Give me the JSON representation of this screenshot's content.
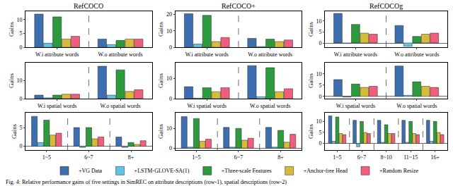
{
  "caption": "Fig. 4: Relative performance gains of five settings in SimREC on attribute descriptions (row-1), spatial descriptions (row-2)",
  "chart_data": [
    {
      "type": "bar",
      "title": "RefCOCO",
      "y_label": "Gains",
      "grid": true,
      "legend": "bottom",
      "categories": [
        "W.i attribute words",
        "W.o attribute words"
      ],
      "ylim": [
        0,
        13
      ],
      "yticks": [
        0,
        5,
        10
      ],
      "series": [
        {
          "name": "+VG Data",
          "color": "#3d6fb0",
          "values": [
            12,
            3
          ]
        },
        {
          "name": "+LSTM-GLOVE-SA(1)",
          "color": "#62c3e6",
          "values": [
            1.5,
            1
          ]
        },
        {
          "name": "+Three-scale Features",
          "color": "#2e9a3e",
          "values": [
            11,
            2.5
          ]
        },
        {
          "name": "+Anchor-free Head",
          "color": "#d6bc3a",
          "values": [
            3,
            3
          ]
        },
        {
          "name": "+Random Resize",
          "color": "#ef5f7c",
          "values": [
            4,
            3
          ]
        }
      ]
    },
    {
      "type": "bar",
      "title": "RefCOCO+",
      "y_label": "Gains",
      "grid": true,
      "categories": [
        "W.i attribute words",
        "W.o attribute words"
      ],
      "ylim": [
        0,
        22
      ],
      "yticks": [
        0,
        10,
        20
      ],
      "series": [
        {
          "name": "+VG Data",
          "color": "#3d6fb0",
          "values": [
            20.5,
            5.5
          ]
        },
        {
          "name": "+LSTM-GLOVE-SA(1)",
          "color": "#62c3e6",
          "values": [
            2,
            0.5
          ]
        },
        {
          "name": "+Three-scale Features",
          "color": "#2e9a3e",
          "values": [
            19.5,
            5
          ]
        },
        {
          "name": "+Anchor-free Head",
          "color": "#d6bc3a",
          "values": [
            3.5,
            3.5
          ]
        },
        {
          "name": "+Random Resize",
          "color": "#ef5f7c",
          "values": [
            6,
            4.5
          ]
        }
      ]
    },
    {
      "type": "bar",
      "title": "RefCOCOg",
      "y_label": "Gains",
      "grid": true,
      "categories": [
        "W.i attribute words",
        "W.o attribute words"
      ],
      "ylim": [
        -2,
        14.5
      ],
      "yticks": [
        0,
        5,
        10
      ],
      "series": [
        {
          "name": "+VG Data",
          "color": "#3d6fb0",
          "values": [
            13.5,
            8
          ]
        },
        {
          "name": "+LSTM-GLOVE-SA(1)",
          "color": "#62c3e6",
          "values": [
            -0.2,
            -1.5
          ]
        },
        {
          "name": "+Three-scale Features",
          "color": "#2e9a3e",
          "values": [
            8.5,
            3
          ]
        },
        {
          "name": "+Anchor-free Head",
          "color": "#d6bc3a",
          "values": [
            4.5,
            4
          ]
        },
        {
          "name": "+Random Resize",
          "color": "#ef5f7c",
          "values": [
            4,
            4.5
          ]
        }
      ]
    },
    {
      "type": "bar",
      "y_label": "Gains",
      "grid": true,
      "categories": [
        "W.i spatial words",
        "W.o spatial words"
      ],
      "ylim": [
        0,
        20
      ],
      "yticks": [
        0,
        10
      ],
      "series": [
        {
          "name": "+VG Data",
          "color": "#3d6fb0",
          "values": [
            2,
            18
          ]
        },
        {
          "name": "+LSTM-GLOVE-SA(1)",
          "color": "#62c3e6",
          "values": [
            0.5,
            2
          ]
        },
        {
          "name": "+Three-scale Features",
          "color": "#2e9a3e",
          "values": [
            2,
            16
          ]
        },
        {
          "name": "+Anchor-free Head",
          "color": "#d6bc3a",
          "values": [
            2.5,
            4
          ]
        },
        {
          "name": "+Random Resize",
          "color": "#ef5f7c",
          "values": [
            2.5,
            5
          ]
        }
      ]
    },
    {
      "type": "bar",
      "y_label": "Gains",
      "grid": true,
      "categories": [
        "W.i spatial words",
        "W.o spatial words"
      ],
      "ylim": [
        0,
        18
      ],
      "yticks": [
        0,
        10
      ],
      "series": [
        {
          "name": "+VG Data",
          "color": "#3d6fb0",
          "values": [
            6,
            16.5
          ]
        },
        {
          "name": "+LSTM-GLOVE-SA(1)",
          "color": "#62c3e6",
          "values": [
            0.3,
            1
          ]
        },
        {
          "name": "+Three-scale Features",
          "color": "#2e9a3e",
          "values": [
            5.5,
            15.5
          ]
        },
        {
          "name": "+Anchor-free Head",
          "color": "#d6bc3a",
          "values": [
            3.5,
            3.5
          ]
        },
        {
          "name": "+Random Resize",
          "color": "#ef5f7c",
          "values": [
            5.5,
            5
          ]
        }
      ]
    },
    {
      "type": "bar",
      "y_label": "Gains",
      "grid": true,
      "categories": [
        "W.i spatial words",
        "W.o spatial words"
      ],
      "ylim": [
        -1,
        15
      ],
      "yticks": [
        0,
        5,
        10
      ],
      "series": [
        {
          "name": "+VG Data",
          "color": "#3d6fb0",
          "values": [
            7.5,
            13.5
          ]
        },
        {
          "name": "+LSTM-GLOVE-SA(1)",
          "color": "#62c3e6",
          "values": [
            -0.3,
            0.5
          ]
        },
        {
          "name": "+Three-scale Features",
          "color": "#2e9a3e",
          "values": [
            5.5,
            6.5
          ]
        },
        {
          "name": "+Anchor-free Head",
          "color": "#d6bc3a",
          "values": [
            4,
            4.5
          ]
        },
        {
          "name": "+Random Resize",
          "color": "#ef5f7c",
          "values": [
            4.5,
            4
          ]
        }
      ]
    },
    {
      "type": "bar",
      "y_label": "Gains",
      "grid": true,
      "categories": [
        "1~5",
        "6~7",
        "8+"
      ],
      "ylim": [
        -1,
        9
      ],
      "yticks": [
        0,
        5
      ],
      "series": [
        {
          "name": "+VG Data",
          "color": "#3d6fb0",
          "values": [
            8,
            5,
            2.5
          ]
        },
        {
          "name": "+LSTM-GLOVE-SA(1)",
          "color": "#62c3e6",
          "values": [
            1,
            -0.3,
            -0.3
          ]
        },
        {
          "name": "+Three-scale Features",
          "color": "#2e9a3e",
          "values": [
            7,
            5,
            1
          ]
        },
        {
          "name": "+Anchor-free Head",
          "color": "#d6bc3a",
          "values": [
            3,
            2,
            0.5
          ]
        },
        {
          "name": "+Random Resize",
          "color": "#ef5f7c",
          "values": [
            3.5,
            2.5,
            1.5
          ]
        }
      ]
    },
    {
      "type": "bar",
      "y_label": "Gains",
      "grid": true,
      "categories": [
        "1~5",
        "6~7",
        "8+"
      ],
      "ylim": [
        -1,
        18
      ],
      "yticks": [
        0,
        10
      ],
      "series": [
        {
          "name": "+VG Data",
          "color": "#3d6fb0",
          "values": [
            16,
            10.5,
            10.5
          ]
        },
        {
          "name": "+LSTM-GLOVE-SA(1)",
          "color": "#62c3e6",
          "values": [
            0.5,
            0.5,
            0.5
          ]
        },
        {
          "name": "+Three-scale Features",
          "color": "#2e9a3e",
          "values": [
            15,
            10,
            9
          ]
        },
        {
          "name": "+Anchor-free Head",
          "color": "#d6bc3a",
          "values": [
            3.5,
            4,
            3
          ]
        },
        {
          "name": "+Random Resize",
          "color": "#ef5f7c",
          "values": [
            4.5,
            5,
            7
          ]
        }
      ]
    },
    {
      "type": "bar",
      "y_label": "Gains",
      "grid": true,
      "categories": [
        "1~5",
        "6~7",
        "8~10",
        "11~15",
        "16+"
      ],
      "ylim": [
        -3,
        14
      ],
      "yticks": [
        0,
        5,
        10
      ],
      "series": [
        {
          "name": "+VG Data",
          "color": "#3d6fb0",
          "values": [
            12.5,
            10.5,
            10.5,
            10.5,
            10.5
          ]
        },
        {
          "name": "+LSTM-GLOVE-SA(1)",
          "color": "#62c3e6",
          "values": [
            1,
            -1.5,
            0.5,
            0.5,
            1
          ]
        },
        {
          "name": "+Three-scale Features",
          "color": "#2e9a3e",
          "values": [
            12,
            10,
            8.5,
            10,
            10
          ]
        },
        {
          "name": "+Anchor-free Head",
          "color": "#d6bc3a",
          "values": [
            4.5,
            5,
            4.5,
            4.5,
            5
          ]
        },
        {
          "name": "+Random Resize",
          "color": "#ef5f7c",
          "values": [
            4,
            4.5,
            4.5,
            4,
            4
          ]
        }
      ]
    }
  ]
}
